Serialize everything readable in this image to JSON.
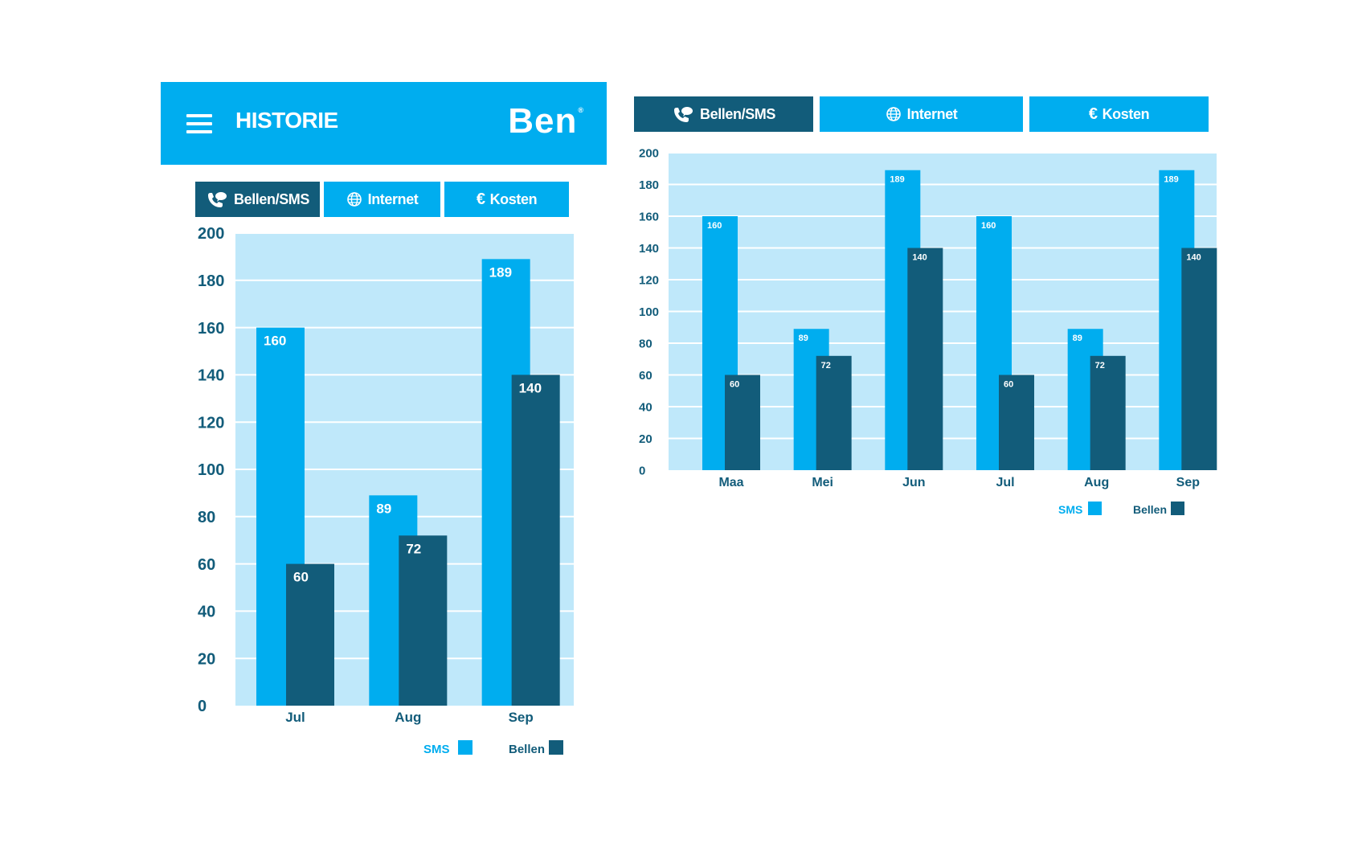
{
  "header": {
    "title": "HISTORIE",
    "brand": "Ben",
    "brand_mark": "®"
  },
  "tabs": [
    {
      "label": "Bellen/SMS",
      "icon": "phone-chat-icon",
      "active": true
    },
    {
      "label": "Internet",
      "icon": "globe-icon",
      "active": false
    },
    {
      "label": "Kosten",
      "icon": "euro-icon",
      "active": false
    }
  ],
  "colors": {
    "sms": "#00adef",
    "bellen": "#125c7a",
    "plot_bg": "#bfe8fa",
    "axis_text": "#125c7a"
  },
  "legend": {
    "sms": "SMS",
    "bellen": "Bellen"
  },
  "chart_data": [
    {
      "type": "bar",
      "categories": [
        "Jul",
        "Aug",
        "Sep"
      ],
      "series": [
        {
          "name": "SMS",
          "values": [
            160,
            89,
            189
          ]
        },
        {
          "name": "Bellen",
          "values": [
            60,
            72,
            140
          ]
        }
      ],
      "ylim": [
        0,
        200
      ],
      "yticks": [
        0,
        20,
        40,
        60,
        80,
        100,
        120,
        140,
        160,
        180,
        200
      ],
      "grid": true,
      "legend_position": "bottom-right"
    },
    {
      "type": "bar",
      "categories": [
        "Maa",
        "Mei",
        "Jun",
        "Jul",
        "Aug",
        "Sep"
      ],
      "series": [
        {
          "name": "SMS",
          "values": [
            160,
            89,
            189,
            160,
            89,
            189
          ]
        },
        {
          "name": "Bellen",
          "values": [
            60,
            72,
            140,
            60,
            72,
            140
          ]
        }
      ],
      "ylim": [
        0,
        200
      ],
      "yticks": [
        0,
        20,
        40,
        60,
        80,
        100,
        120,
        140,
        160,
        180,
        200
      ],
      "grid": true,
      "legend_position": "bottom-right"
    }
  ]
}
